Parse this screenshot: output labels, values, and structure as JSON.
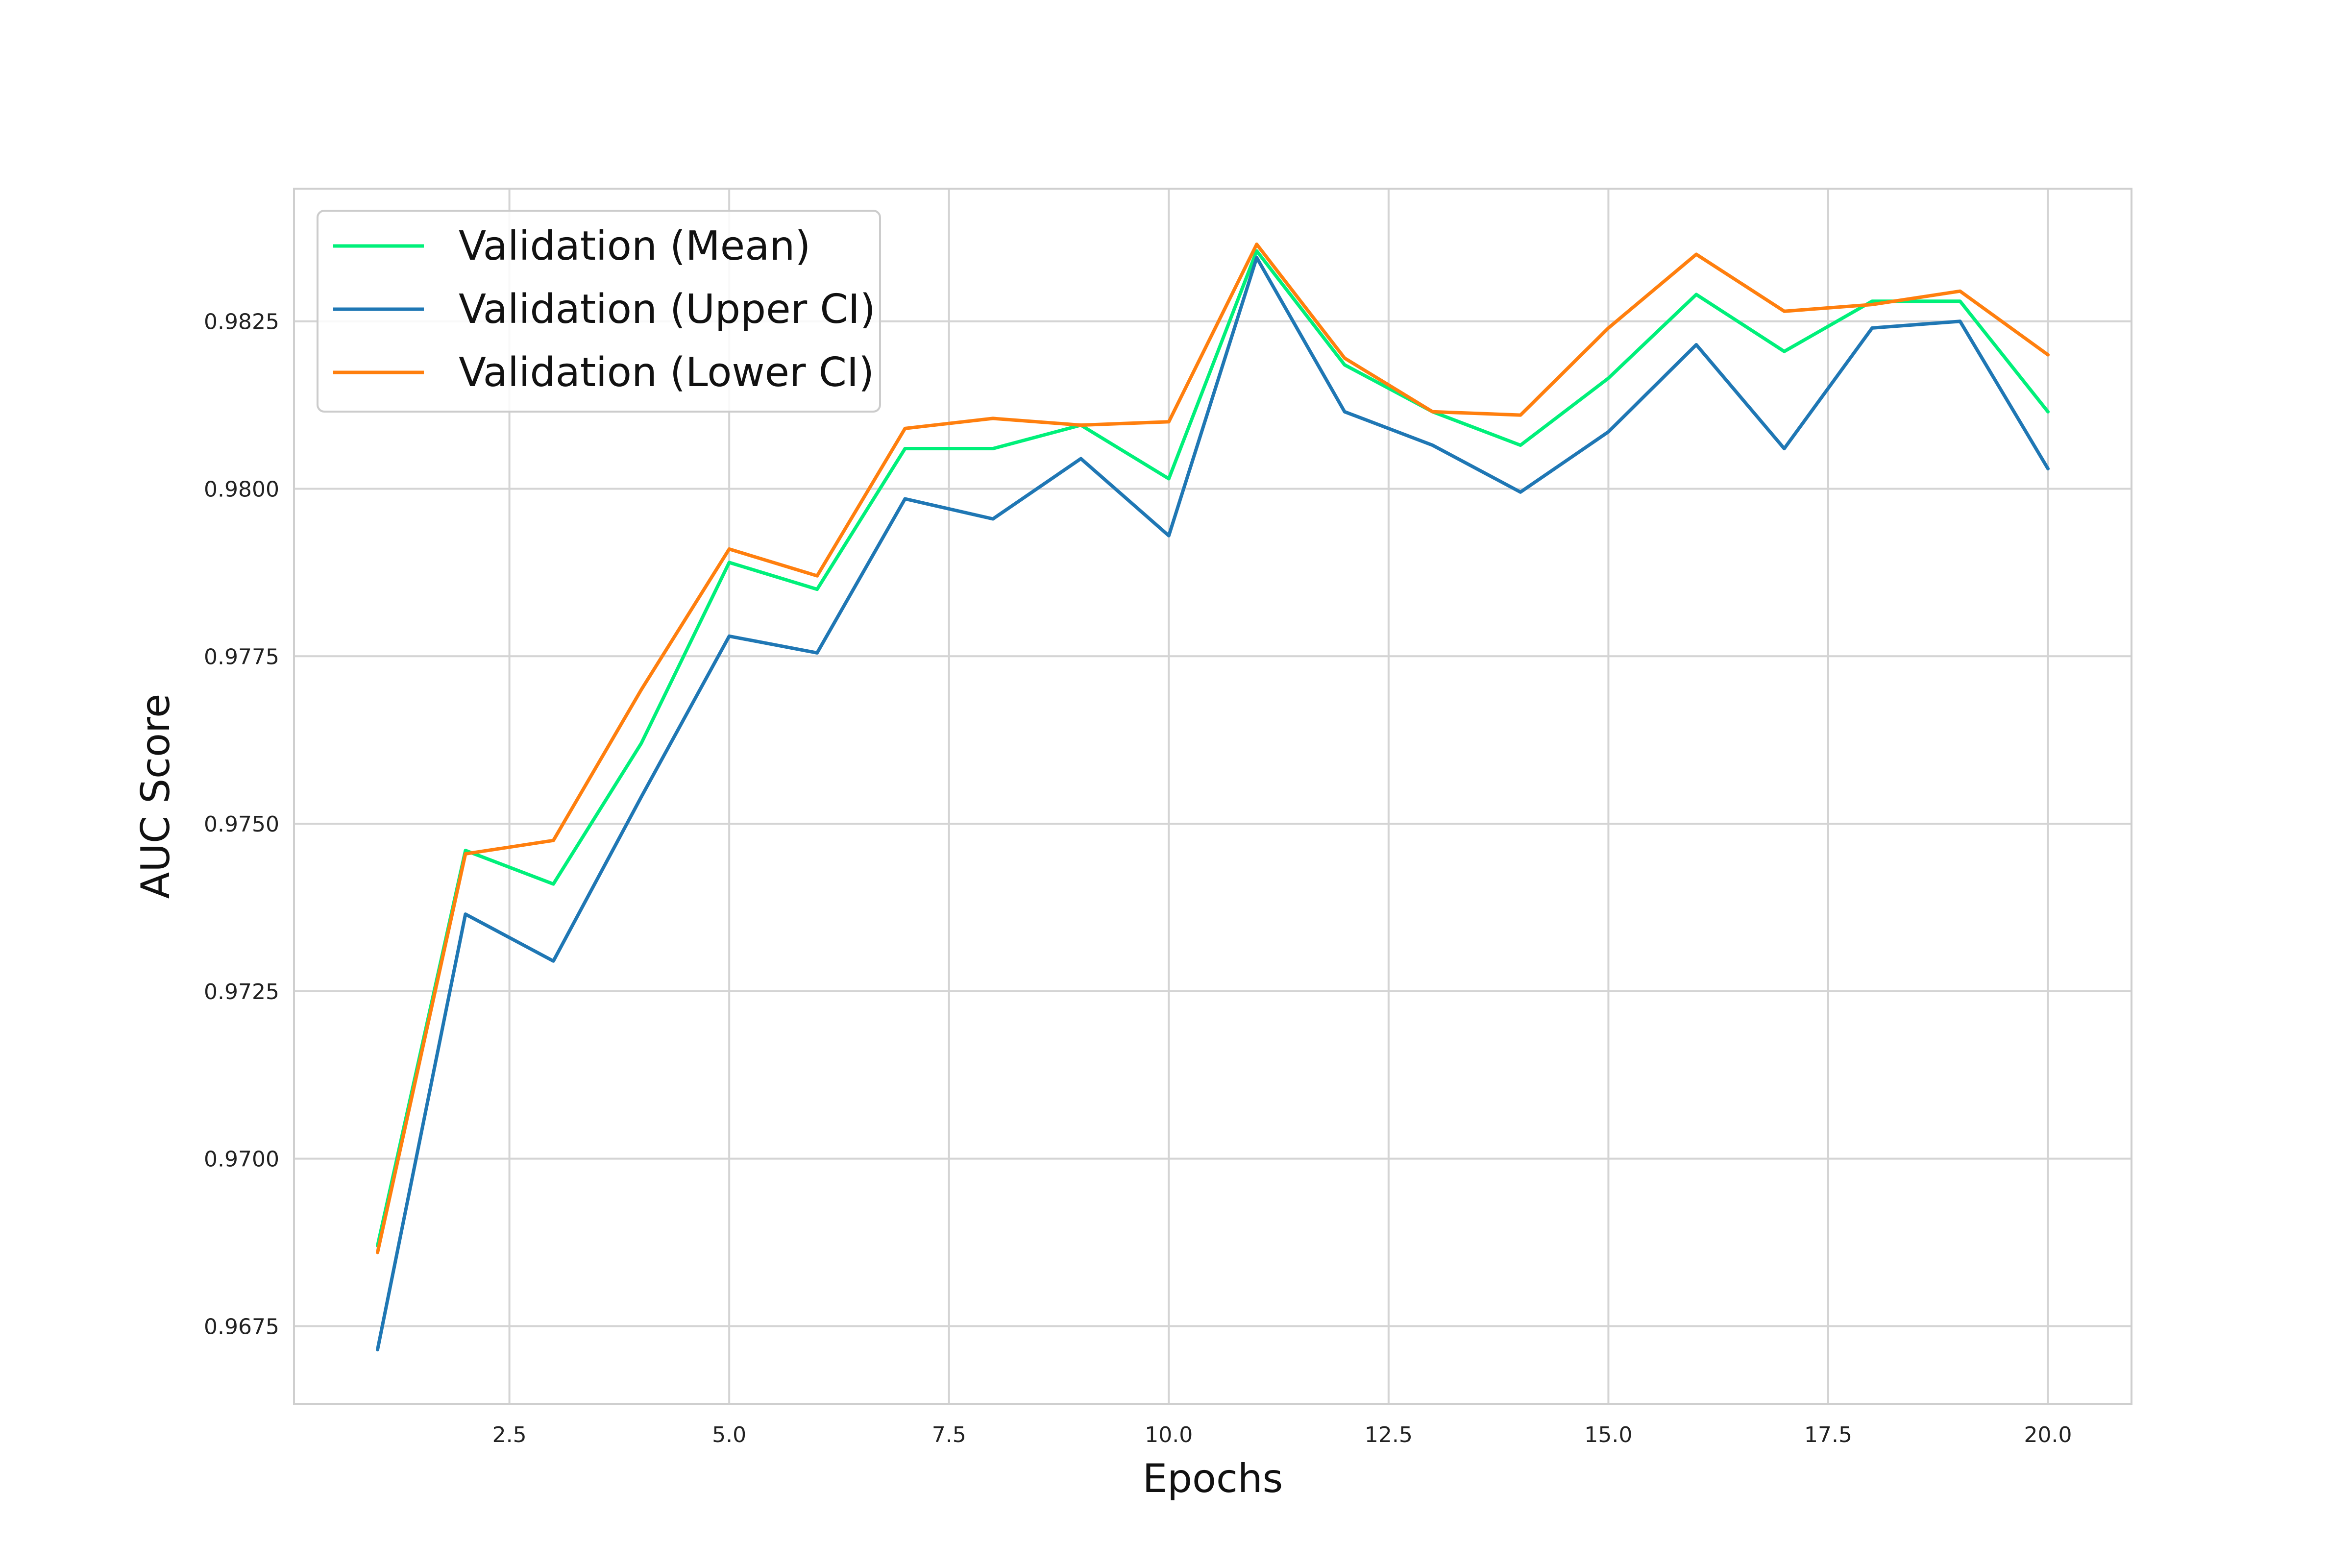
{
  "chart_data": {
    "type": "line",
    "title": "",
    "xlabel": "Epochs",
    "ylabel": "AUC Score",
    "xlim": [
      0.05,
      20.95
    ],
    "ylim": [
      0.96634,
      0.98448
    ],
    "xticks": [
      2.5,
      5.0,
      7.5,
      10.0,
      12.5,
      15.0,
      17.5,
      20.0
    ],
    "xtick_labels": [
      "2.5",
      "5.0",
      "7.5",
      "10.0",
      "12.5",
      "15.0",
      "17.5",
      "20.0"
    ],
    "yticks": [
      0.9675,
      0.97,
      0.9725,
      0.975,
      0.9775,
      0.98,
      0.9825
    ],
    "ytick_labels": [
      "0.9675",
      "0.9700",
      "0.9725",
      "0.9750",
      "0.9775",
      "0.9800",
      "0.9825"
    ],
    "grid": true,
    "legend_position": "top-left",
    "x": [
      1,
      2,
      3,
      4,
      5,
      6,
      7,
      8,
      9,
      10,
      11,
      12,
      13,
      14,
      15,
      16,
      17,
      18,
      19,
      20
    ],
    "series": [
      {
        "name": "Validation (Mean)",
        "color": "#00f07a",
        "values": [
          0.9687,
          0.9746,
          0.9741,
          0.9762,
          0.9789,
          0.9785,
          0.9806,
          0.9806,
          0.98095,
          0.98015,
          0.98355,
          0.98185,
          0.98115,
          0.98065,
          0.98165,
          0.9829,
          0.98205,
          0.9828,
          0.9828,
          0.98115
        ]
      },
      {
        "name": "Validation (Upper CI)",
        "color": "#1f77b4",
        "values": [
          0.96715,
          0.97365,
          0.97295,
          0.9754,
          0.9778,
          0.97755,
          0.97985,
          0.97955,
          0.98045,
          0.9793,
          0.98345,
          0.98115,
          0.98065,
          0.97995,
          0.98085,
          0.98215,
          0.9806,
          0.9824,
          0.9825,
          0.9803
        ]
      },
      {
        "name": "Validation (Lower CI)",
        "color": "#ff7f0e",
        "values": [
          0.9686,
          0.97455,
          0.97475,
          0.977,
          0.9791,
          0.9787,
          0.9809,
          0.98105,
          0.98095,
          0.981,
          0.98365,
          0.98195,
          0.98115,
          0.9811,
          0.9824,
          0.9835,
          0.98265,
          0.98275,
          0.98295,
          0.982
        ]
      }
    ]
  }
}
